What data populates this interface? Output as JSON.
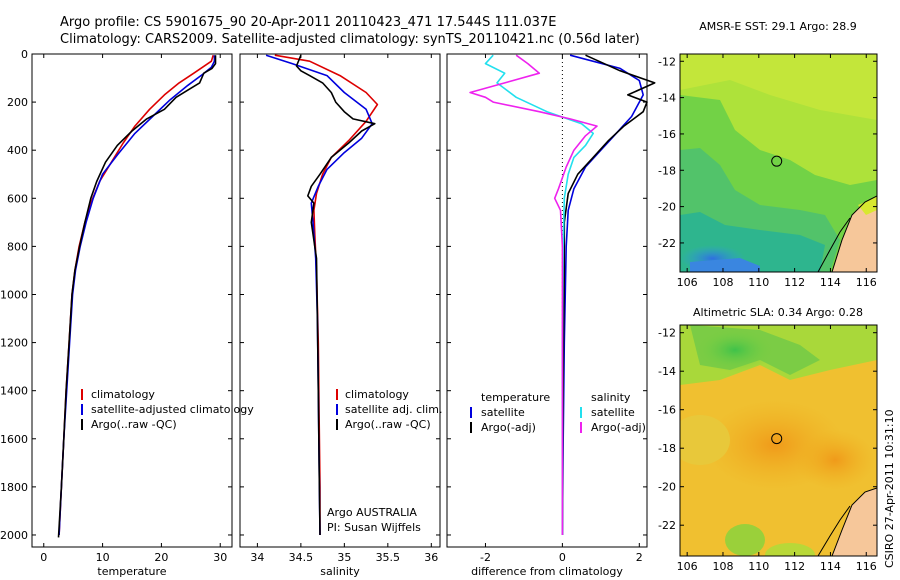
{
  "titles": {
    "line1": "Argo profile: CS 5901675_90 20-Apr-2011 20110423_471 17.544S 111.037E",
    "line2": "Climatology: CARS2009. Satellite-adjusted climatology: synTS_20110421.nc (0.56d later)"
  },
  "colors": {
    "climatology": "#dd0000",
    "satellite": "#0000dd",
    "argo": "#000000",
    "sat_salinity": "#22e0ee",
    "argo_salinity": "#ee22ee"
  },
  "chart_data": [
    {
      "type": "line",
      "name": "temperature",
      "xlabel": "temperature",
      "xlim": [
        -2,
        32
      ],
      "ylim": [
        0,
        2050
      ],
      "xticks": [
        0,
        10,
        20,
        30
      ],
      "yticks": [
        0,
        200,
        400,
        600,
        800,
        1000,
        1200,
        1400,
        1600,
        1800,
        2000
      ],
      "legend": [
        "climatology",
        "satellite-adjusted climatology",
        "Argo(..raw -QC)"
      ],
      "series": [
        {
          "name": "climatology",
          "color": "climatology",
          "points": [
            [
              28.8,
              5
            ],
            [
              28.5,
              30
            ],
            [
              27,
              55
            ],
            [
              25.5,
              80
            ],
            [
              23,
              120
            ],
            [
              20.5,
              170
            ],
            [
              18,
              230
            ],
            [
              15.5,
              300
            ],
            [
              13.5,
              370
            ],
            [
              11.5,
              450
            ],
            [
              9.5,
              530
            ],
            [
              8,
              620
            ],
            [
              7,
              700
            ],
            [
              6,
              800
            ],
            [
              5.3,
              900
            ],
            [
              4.8,
              1000
            ],
            [
              4.3,
              1200
            ],
            [
              3.8,
              1400
            ],
            [
              3.4,
              1600
            ],
            [
              3,
              1800
            ],
            [
              2.6,
              2000
            ]
          ]
        },
        {
          "name": "satellite-adjusted climatology",
          "color": "satellite",
          "points": [
            [
              29,
              5
            ],
            [
              29,
              30
            ],
            [
              28.5,
              55
            ],
            [
              27,
              85
            ],
            [
              24.5,
              130
            ],
            [
              21.5,
              190
            ],
            [
              18.5,
              260
            ],
            [
              15.5,
              330
            ],
            [
              12.5,
              420
            ],
            [
              10,
              500
            ],
            [
              8.4,
              600
            ],
            [
              7.2,
              700
            ],
            [
              6.2,
              800
            ],
            [
              5.4,
              900
            ],
            [
              4.9,
              1000
            ],
            [
              4.4,
              1200
            ],
            [
              3.9,
              1400
            ],
            [
              3.4,
              1600
            ],
            [
              3,
              1800
            ],
            [
              2.6,
              2000
            ]
          ]
        },
        {
          "name": "Argo(..raw -QC)",
          "color": "argo",
          "points": [
            [
              29.2,
              5
            ],
            [
              29.2,
              40
            ],
            [
              28.6,
              60
            ],
            [
              27.2,
              80
            ],
            [
              26.5,
              120
            ],
            [
              24.5,
              150
            ],
            [
              22.5,
              180
            ],
            [
              20.5,
              230
            ],
            [
              17.5,
              270
            ],
            [
              15,
              320
            ],
            [
              12.5,
              380
            ],
            [
              10.5,
              450
            ],
            [
              9,
              530
            ],
            [
              8,
              600
            ],
            [
              7,
              700
            ],
            [
              6.1,
              800
            ],
            [
              5.3,
              900
            ],
            [
              4.8,
              1000
            ],
            [
              4.3,
              1200
            ],
            [
              3.8,
              1400
            ],
            [
              3.4,
              1600
            ],
            [
              3,
              1800
            ],
            [
              2.5,
              2010
            ]
          ]
        }
      ]
    },
    {
      "type": "line",
      "name": "salinity",
      "xlabel": "salinity",
      "xlim": [
        33.8,
        36.1
      ],
      "ylim": [
        0,
        2050
      ],
      "xticks": [
        34,
        34.5,
        35,
        35.5,
        36
      ],
      "yticks": [
        0,
        200,
        400,
        600,
        800,
        1000,
        1200,
        1400,
        1600,
        1800,
        2000
      ],
      "legend": [
        "climatology",
        "satellite adj. clim.",
        "Argo(..raw -QC)"
      ],
      "annotations": [
        "Argo AUSTRALIA",
        "PI: Susan Wijffels"
      ],
      "series": [
        {
          "name": "climatology",
          "color": "climatology",
          "points": [
            [
              34.2,
              5
            ],
            [
              34.6,
              30
            ],
            [
              34.95,
              90
            ],
            [
              35.25,
              160
            ],
            [
              35.38,
              210
            ],
            [
              35.25,
              280
            ],
            [
              35.05,
              360
            ],
            [
              34.85,
              430
            ],
            [
              34.75,
              500
            ],
            [
              34.68,
              580
            ],
            [
              34.65,
              650
            ],
            [
              34.66,
              750
            ],
            [
              34.68,
              900
            ],
            [
              34.7,
              1200
            ],
            [
              34.71,
              1500
            ],
            [
              34.72,
              1800
            ],
            [
              34.72,
              2000
            ]
          ]
        },
        {
          "name": "satellite adj. clim.",
          "color": "satellite",
          "points": [
            [
              34.1,
              5
            ],
            [
              34.4,
              40
            ],
            [
              34.8,
              90
            ],
            [
              35.0,
              160
            ],
            [
              35.25,
              230
            ],
            [
              35.32,
              290
            ],
            [
              35.2,
              350
            ],
            [
              35.0,
              410
            ],
            [
              34.8,
              480
            ],
            [
              34.7,
              550
            ],
            [
              34.62,
              620
            ],
            [
              34.64,
              700
            ],
            [
              34.67,
              850
            ],
            [
              34.69,
              1100
            ],
            [
              34.7,
              1400
            ],
            [
              34.71,
              1700
            ],
            [
              34.72,
              2000
            ]
          ]
        },
        {
          "name": "Argo(..raw -QC)",
          "color": "argo",
          "points": [
            [
              34.5,
              5
            ],
            [
              34.45,
              50
            ],
            [
              34.5,
              70
            ],
            [
              34.6,
              90
            ],
            [
              34.75,
              120
            ],
            [
              34.85,
              160
            ],
            [
              34.9,
              200
            ],
            [
              35.0,
              240
            ],
            [
              35.1,
              270
            ],
            [
              35.35,
              290
            ],
            [
              35.2,
              320
            ],
            [
              35.05,
              370
            ],
            [
              34.85,
              430
            ],
            [
              34.72,
              500
            ],
            [
              34.62,
              550
            ],
            [
              34.58,
              590
            ],
            [
              34.65,
              620
            ],
            [
              34.62,
              700
            ],
            [
              34.68,
              850
            ],
            [
              34.69,
              1100
            ],
            [
              34.7,
              1400
            ],
            [
              34.71,
              1700
            ],
            [
              34.72,
              2000
            ]
          ]
        }
      ]
    },
    {
      "type": "line",
      "name": "difference",
      "xlabel": "difference from climatology",
      "xlim": [
        -3,
        2.2
      ],
      "ylim": [
        0,
        2050
      ],
      "xticks": [
        -2,
        0,
        2
      ],
      "yticks": [
        0,
        200,
        400,
        600,
        800,
        1000,
        1200,
        1400,
        1600,
        1800,
        2000
      ],
      "legend_groups": [
        {
          "header": "temperature",
          "items": [
            "satellite",
            "Argo(-adj)"
          ]
        },
        {
          "header": "salinity",
          "items": [
            "satellite",
            "Argo(-adj)"
          ]
        }
      ],
      "series": [
        {
          "name": "temperature satellite",
          "color": "satellite",
          "points": [
            [
              0.2,
              5
            ],
            [
              1.5,
              60
            ],
            [
              2.0,
              110
            ],
            [
              2.1,
              170
            ],
            [
              1.8,
              260
            ],
            [
              1.4,
              330
            ],
            [
              1.0,
              400
            ],
            [
              0.6,
              470
            ],
            [
              0.3,
              560
            ],
            [
              0.15,
              650
            ],
            [
              0.1,
              800
            ],
            [
              0.05,
              1200
            ],
            [
              0.02,
              1600
            ],
            [
              0,
              2000
            ]
          ]
        },
        {
          "name": "temperature Argo(-adj)",
          "color": "argo",
          "points": [
            [
              0.6,
              5
            ],
            [
              1.5,
              70
            ],
            [
              2.4,
              120
            ],
            [
              1.7,
              170
            ],
            [
              2.2,
              200
            ],
            [
              2.1,
              240
            ],
            [
              1.6,
              300
            ],
            [
              1.2,
              360
            ],
            [
              0.8,
              430
            ],
            [
              0.4,
              500
            ],
            [
              0.15,
              580
            ],
            [
              0.05,
              700
            ],
            [
              0.05,
              900
            ],
            [
              0.03,
              1200
            ],
            [
              0.01,
              1600
            ],
            [
              0,
              2000
            ]
          ]
        },
        {
          "name": "salinity satellite",
          "color": "sat_salinity",
          "points": [
            [
              -1.8,
              5
            ],
            [
              -2.0,
              40
            ],
            [
              -1.5,
              80
            ],
            [
              -1.7,
              120
            ],
            [
              -1.2,
              180
            ],
            [
              -0.4,
              240
            ],
            [
              0.5,
              290
            ],
            [
              0.8,
              330
            ],
            [
              0.6,
              380
            ],
            [
              0.3,
              430
            ],
            [
              0.15,
              500
            ],
            [
              0.05,
              600
            ],
            [
              0.02,
              800
            ],
            [
              0,
              1200
            ],
            [
              0,
              1600
            ],
            [
              0,
              2000
            ]
          ]
        },
        {
          "name": "salinity Argo(-adj)",
          "color": "argo_salinity",
          "points": [
            [
              -1.2,
              5
            ],
            [
              -0.9,
              40
            ],
            [
              -0.6,
              80
            ],
            [
              -2.4,
              160
            ],
            [
              -2.0,
              180
            ],
            [
              -1.8,
              200
            ],
            [
              -0.6,
              240
            ],
            [
              0.2,
              270
            ],
            [
              0.9,
              300
            ],
            [
              0.6,
              340
            ],
            [
              0.3,
              400
            ],
            [
              0.1,
              470
            ],
            [
              -0.1,
              560
            ],
            [
              -0.2,
              600
            ],
            [
              -0.05,
              650
            ],
            [
              0,
              800
            ],
            [
              0,
              1200
            ],
            [
              0,
              1600
            ],
            [
              0,
              2000
            ]
          ]
        }
      ]
    },
    {
      "type": "heatmap",
      "name": "sst_map",
      "title": "AMSR-E SST: 29.1 Argo: 28.9",
      "xlim": [
        105.6,
        116.6
      ],
      "ylim": [
        -23.6,
        -11.6
      ],
      "xticks": [
        106,
        108,
        110,
        112,
        114,
        116
      ],
      "yticks": [
        -12,
        -14,
        -16,
        -18,
        -20,
        -22
      ],
      "marker": [
        111.0,
        -17.5
      ]
    },
    {
      "type": "heatmap",
      "name": "sla_map",
      "title": "Altimetric SLA: 0.34 Argo: 0.28",
      "xlim": [
        105.6,
        116.6
      ],
      "ylim": [
        -23.6,
        -11.6
      ],
      "xticks": [
        106,
        108,
        110,
        112,
        114,
        116
      ],
      "yticks": [
        -12,
        -14,
        -16,
        -18,
        -20,
        -22
      ],
      "marker": [
        111.0,
        -17.5
      ]
    }
  ],
  "footer": {
    "stamp": "CSIRO 27-Apr-2011 10:31:10"
  }
}
